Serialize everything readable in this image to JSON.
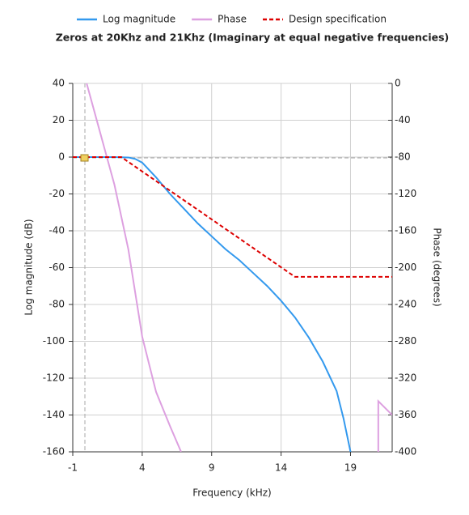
{
  "chart_data": {
    "type": "line",
    "title": "Zeros at 20Khz and 21Khz (Imaginary at equal negative frequencies)",
    "xlabel": "Frequency (kHz)",
    "ylabel": "Log magnitude (dB)",
    "y2label": "Phase (degrees)",
    "xlim": [
      -1,
      22
    ],
    "xticks": [
      -1,
      4,
      9,
      14,
      19
    ],
    "ylim": [
      -160,
      40
    ],
    "yticks": [
      40,
      20,
      0,
      -20,
      -40,
      -60,
      -80,
      -100,
      -120,
      -140,
      -160
    ],
    "y2lim": [
      -400,
      0
    ],
    "y2ticks": [
      0,
      -40,
      -80,
      -120,
      -160,
      -200,
      -240,
      -280,
      -320,
      -360,
      -400
    ],
    "grid": true,
    "legend": "top",
    "series": [
      {
        "name": "Log magnitude",
        "color": "#3399ee",
        "x": [
          -1,
          0,
          1,
          2,
          3,
          3.5,
          4,
          5,
          6,
          7,
          8,
          9,
          10,
          11,
          12,
          13,
          14,
          15,
          16,
          17,
          18,
          18.5,
          19
        ],
        "values": [
          0,
          0,
          0,
          0,
          -0.2,
          -1,
          -3,
          -11,
          -20,
          -28,
          -36,
          -43,
          -50,
          -56,
          -63,
          -70,
          -78,
          -87,
          -98,
          -111,
          -127,
          -142,
          -160
        ]
      },
      {
        "name": "Phase",
        "color": "#dda0e0",
        "axis": "y2",
        "x": [
          0,
          1,
          2,
          3,
          4,
          5,
          6,
          6.8,
          14,
          21,
          21,
          22
        ],
        "values": [
          0,
          -55,
          -110,
          -180,
          -275,
          -335,
          -372,
          -400,
          null,
          -400,
          -345,
          -360
        ]
      },
      {
        "name": "Design specification",
        "color": "#dd0000",
        "dash": true,
        "x": [
          -1,
          2.5,
          15,
          22
        ],
        "values": [
          0,
          0,
          -65,
          -65
        ]
      }
    ]
  }
}
